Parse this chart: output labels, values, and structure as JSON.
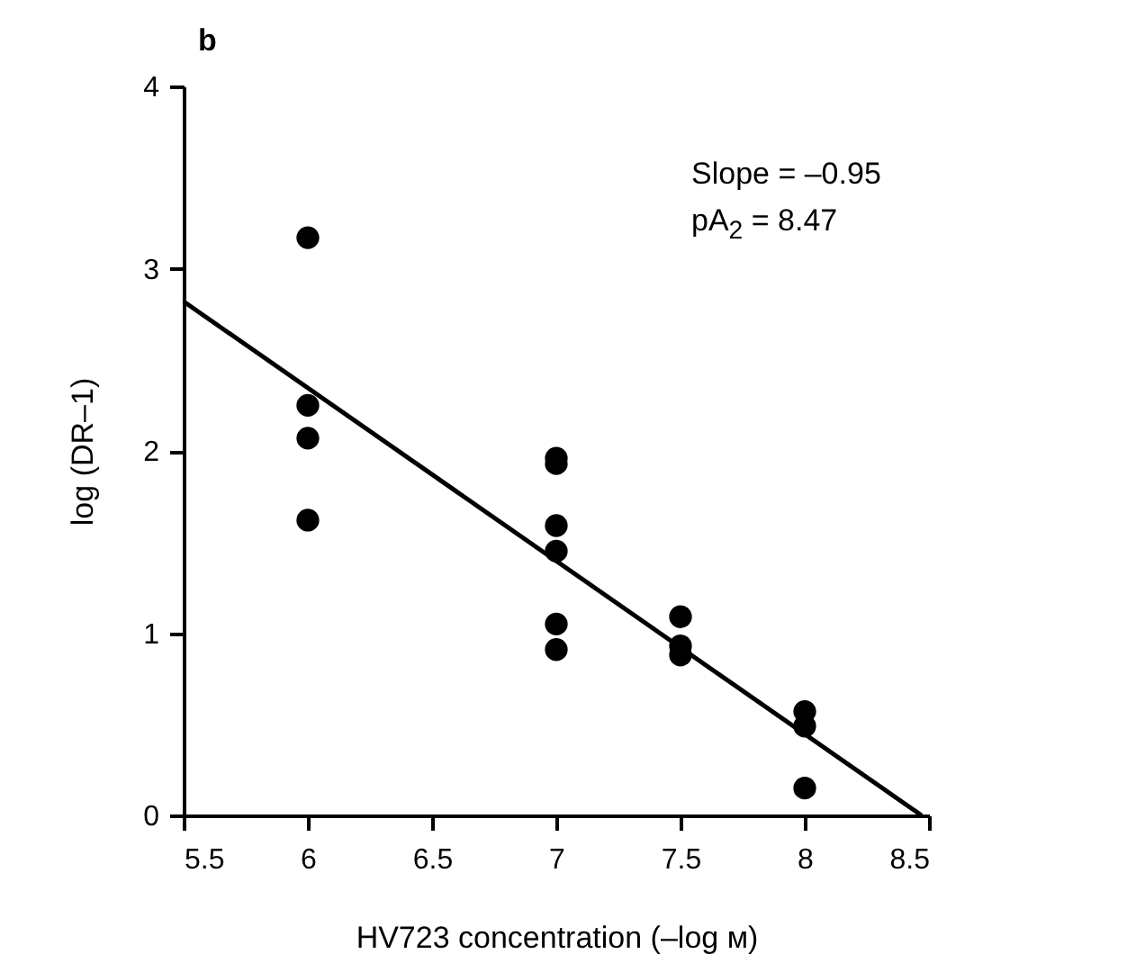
{
  "chart_data": {
    "type": "scatter",
    "title": "b",
    "xlabel": "HV723 concentration (–log м)",
    "ylabel": "log (DR–1)",
    "xlim": [
      5.5,
      8.5
    ],
    "xticks": [
      5.5,
      6,
      6.5,
      7,
      7.5,
      8,
      8.5
    ],
    "ylim": [
      0,
      4
    ],
    "yticks": [
      0,
      1,
      2,
      3,
      4
    ],
    "grid": false,
    "marker": "circle",
    "annotations": [
      "Slope = –0.95",
      "pA$_{2}$ = 8.47"
    ],
    "series": [
      {
        "color": "#000000",
        "x": [
          6,
          6,
          6,
          6,
          7,
          7,
          7,
          7,
          7,
          7,
          7.5,
          7.5,
          7.5,
          8,
          8,
          8
        ],
        "values": [
          3.17,
          2.25,
          2.07,
          1.62,
          1.96,
          1.93,
          1.59,
          1.45,
          1.05,
          0.91,
          1.09,
          0.93,
          0.88,
          0.57,
          0.49,
          0.15
        ]
      },
      {
        "type": "line",
        "color": "#000000",
        "line_style": "solid",
        "marker": "none",
        "x": [
          5.5,
          8.47
        ],
        "values": [
          2.82,
          0
        ]
      }
    ]
  }
}
